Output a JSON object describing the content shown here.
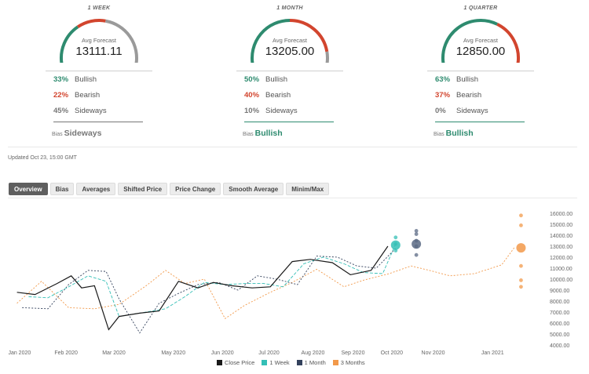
{
  "forecasts": [
    {
      "period": "1 WEEK",
      "avg_label": "Avg Forecast",
      "avg_value": "13111.11",
      "stats": [
        {
          "pct": "33%",
          "label": "Bullish",
          "kind": "bull"
        },
        {
          "pct": "22%",
          "label": "Bearish",
          "kind": "bear"
        },
        {
          "pct": "45%",
          "label": "Sideways",
          "kind": "side"
        }
      ],
      "bias_label": "Bias",
      "bias_value": "Sideways",
      "bias_color": "#777777"
    },
    {
      "period": "1 MONTH",
      "avg_label": "Avg Forecast",
      "avg_value": "13205.00",
      "stats": [
        {
          "pct": "50%",
          "label": "Bullish",
          "kind": "bull"
        },
        {
          "pct": "40%",
          "label": "Bearish",
          "kind": "bear"
        },
        {
          "pct": "10%",
          "label": "Sideways",
          "kind": "side"
        }
      ],
      "bias_label": "Bias",
      "bias_value": "Bullish",
      "bias_color": "#2e8b6f"
    },
    {
      "period": "1 QUARTER",
      "avg_label": "Avg Forecast",
      "avg_value": "12850.00",
      "stats": [
        {
          "pct": "63%",
          "label": "Bullish",
          "kind": "bull"
        },
        {
          "pct": "37%",
          "label": "Bearish",
          "kind": "bear"
        },
        {
          "pct": "0%",
          "label": "Sideways",
          "kind": "side"
        }
      ],
      "bias_label": "Bias",
      "bias_value": "Bullish",
      "bias_color": "#2e8b6f"
    }
  ],
  "colors": {
    "bullish": "#2e8b6f",
    "bearish": "#d2452e",
    "sideways": "#9a9a9a"
  },
  "updated": "Updated Oct 23, 15:00 GMT",
  "tabs": [
    "Overview",
    "Bias",
    "Averages",
    "Shifted Price",
    "Price Change",
    "Smooth Average",
    "Minim/Max"
  ],
  "active_tab": "Overview",
  "chart_data": {
    "type": "line",
    "x_ticks": [
      "Jan 2020",
      "Feb 2020",
      "Mar 2020",
      "May 2020",
      "Jun 2020",
      "Jul 2020",
      "Aug 2020",
      "Sep 2020",
      "Oct 2020",
      "Nov 2020",
      "Jan 2021"
    ],
    "y_ticks": [
      "16000.00",
      "15000.00",
      "14000.00",
      "13000.00",
      "12000.00",
      "11000.00",
      "10000.00",
      "9000.00",
      "8000.00",
      "7000.00",
      "6000.00",
      "5000.00",
      "4000.00"
    ],
    "ylim": [
      4000,
      16000
    ],
    "grid": false,
    "legend_position": "bottom",
    "series": [
      {
        "name": "Close Price",
        "color": "#1a1a1a",
        "dash": "",
        "x": [
          "2020-01-01",
          "2020-01-15",
          "2020-02-01",
          "2020-02-12",
          "2020-02-20",
          "2020-03-01",
          "2020-03-12",
          "2020-03-20",
          "2020-04-05",
          "2020-04-20",
          "2020-05-05",
          "2020-05-20",
          "2020-06-01",
          "2020-06-15",
          "2020-07-01",
          "2020-07-15",
          "2020-08-01",
          "2020-08-15",
          "2020-09-01",
          "2020-09-15",
          "2020-10-01",
          "2020-10-14"
        ],
        "y": [
          8800,
          8600,
          9600,
          10300,
          9200,
          9400,
          5400,
          6600,
          6900,
          7100,
          9800,
          9200,
          9700,
          9400,
          9200,
          9300,
          11600,
          11800,
          11500,
          10400,
          10800,
          13000
        ]
      },
      {
        "name": "1 Week",
        "color": "#34bfb6",
        "dash": "4,2",
        "x": [
          "2020-01-10",
          "2020-01-25",
          "2020-02-10",
          "2020-02-25",
          "2020-03-10",
          "2020-03-20",
          "2020-04-10",
          "2020-04-25",
          "2020-05-10",
          "2020-05-25",
          "2020-06-10",
          "2020-06-25",
          "2020-07-10",
          "2020-07-25",
          "2020-08-10",
          "2020-08-25",
          "2020-09-10",
          "2020-09-25",
          "2020-10-10",
          "2020-10-20"
        ],
        "y": [
          8400,
          8300,
          9300,
          10300,
          9800,
          6600,
          7000,
          7300,
          8400,
          9700,
          9500,
          9600,
          9600,
          9300,
          11400,
          12000,
          11400,
          10600,
          10500,
          13200
        ]
      },
      {
        "name": "1 Month",
        "color": "#33415c",
        "dash": "2,2",
        "x": [
          "2020-01-05",
          "2020-01-25",
          "2020-02-10",
          "2020-02-25",
          "2020-03-10",
          "2020-03-20",
          "2020-04-05",
          "2020-04-20",
          "2020-05-05",
          "2020-05-20",
          "2020-06-05",
          "2020-06-20",
          "2020-07-05",
          "2020-07-20",
          "2020-08-05",
          "2020-08-20",
          "2020-09-05",
          "2020-09-20",
          "2020-10-05",
          "2020-10-20"
        ],
        "y": [
          7400,
          7300,
          9500,
          10800,
          10700,
          8200,
          5100,
          7800,
          8700,
          9500,
          9700,
          9000,
          10300,
          10000,
          9500,
          12100,
          12000,
          11200,
          11000,
          12800
        ]
      },
      {
        "name": "3 Months",
        "color": "#f2994a",
        "dash": "2,2",
        "x": [
          "2020-01-01",
          "2020-01-20",
          "2020-02-10",
          "2020-03-01",
          "2020-03-20",
          "2020-04-10",
          "2020-04-25",
          "2020-05-10",
          "2020-05-25",
          "2020-06-10",
          "2020-06-25",
          "2020-07-15",
          "2020-08-01",
          "2020-08-20",
          "2020-09-10",
          "2020-09-25",
          "2020-10-15",
          "2020-11-01",
          "2020-11-15",
          "2020-12-01",
          "2020-12-20",
          "2021-01-10",
          "2021-01-20"
        ],
        "y": [
          7800,
          9800,
          7400,
          7300,
          7700,
          9400,
          10800,
          9600,
          10000,
          6400,
          7600,
          8800,
          9700,
          10900,
          9300,
          9900,
          10500,
          11200,
          10800,
          10300,
          10500,
          11300,
          12900
        ]
      }
    ],
    "forecast_points": [
      {
        "series": "1 Week",
        "color": "#34bfb6",
        "x": "2020-10-20",
        "y": [
          12600,
          13200,
          13800
        ],
        "avg": 13100
      },
      {
        "series": "1 Month",
        "color": "#5b6a84",
        "x": "2020-11-05",
        "y": [
          12200,
          13000,
          13500,
          14100,
          14400
        ],
        "avg": 13200
      },
      {
        "series": "3 Months",
        "color": "#f2994a",
        "x": "2021-01-25",
        "y": [
          15800,
          14900,
          11200,
          9900,
          9300
        ],
        "avg": 12850
      }
    ]
  }
}
